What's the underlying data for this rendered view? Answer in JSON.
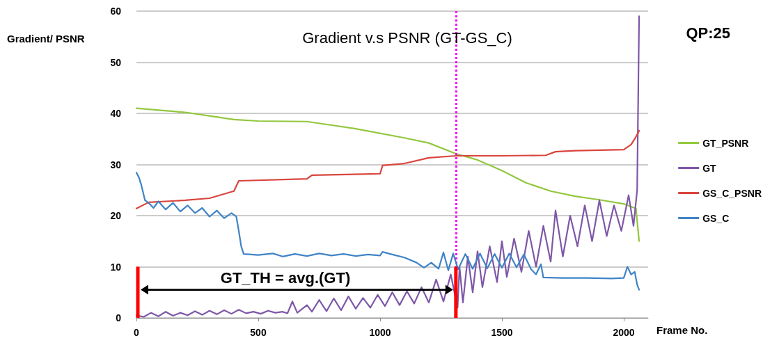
{
  "chart_data": {
    "type": "line",
    "title": "Gradient v.s PSNR (GT-GS_C)",
    "xlabel": "Frame No.",
    "ylabel": "Gradient/ PSNR",
    "annotations": [
      "QP:25",
      "GT_TH = avg.(GT)"
    ],
    "xlim": [
      0,
      2100
    ],
    "xticks": [
      0,
      500,
      1000,
      1500,
      2000
    ],
    "ylim": [
      0,
      60
    ],
    "yticks": [
      0,
      10,
      20,
      30,
      40,
      50,
      60
    ],
    "grid": "y",
    "legend": "right",
    "marker": "none",
    "line_style": "solid",
    "ref_lines": [
      {
        "axis": "x",
        "value": 1311,
        "color": "#ff00ff",
        "line_style": "dotted"
      }
    ],
    "series": [
      {
        "name": "GT_PSNR",
        "color": "#92c83e",
        "x": [
          0,
          100,
          200,
          300,
          400,
          500,
          700,
          900,
          1100,
          1200,
          1311,
          1400,
          1500,
          1600,
          1700,
          1800,
          1900,
          2000,
          2050,
          2063
        ],
        "values": [
          41,
          40.6,
          40.2,
          39.5,
          38.8,
          38.5,
          38.4,
          37.0,
          35.2,
          34.2,
          32.1,
          30.9,
          28.8,
          26.4,
          24.8,
          23.8,
          23.1,
          22.3,
          21.4,
          15
        ]
      },
      {
        "name": "GT",
        "color": "#7e57a8",
        "x": [
          0,
          30,
          60,
          90,
          120,
          150,
          180,
          210,
          240,
          270,
          300,
          330,
          360,
          390,
          420,
          450,
          480,
          510,
          540,
          570,
          600,
          620,
          640,
          660,
          700,
          720,
          750,
          780,
          810,
          840,
          870,
          900,
          930,
          960,
          990,
          1020,
          1050,
          1080,
          1110,
          1140,
          1170,
          1200,
          1230,
          1260,
          1290,
          1318,
          1326,
          1340,
          1360,
          1380,
          1400,
          1420,
          1450,
          1480,
          1500,
          1520,
          1550,
          1580,
          1610,
          1640,
          1670,
          1700,
          1720,
          1750,
          1780,
          1810,
          1840,
          1870,
          1900,
          1930,
          1960,
          1990,
          2020,
          2040,
          2055,
          2063
        ],
        "values": [
          0.5,
          0.2,
          1.0,
          0.3,
          1.2,
          0.4,
          1.0,
          0.5,
          1.3,
          0.6,
          1.4,
          0.7,
          1.5,
          0.8,
          1.6,
          0.9,
          1.2,
          0.8,
          1.4,
          1.0,
          1.2,
          0.9,
          3.2,
          1.0,
          2.5,
          1.2,
          3.5,
          1.3,
          3.8,
          1.5,
          4.2,
          1.8,
          3.9,
          2.0,
          4.5,
          2.3,
          5.0,
          2.5,
          5.2,
          2.8,
          6.0,
          3.0,
          7.5,
          3.2,
          8.5,
          2.0,
          10,
          3.0,
          12,
          5.0,
          13,
          6.0,
          14,
          7.0,
          15,
          8.0,
          15.5,
          9.0,
          17,
          10,
          18,
          11,
          21,
          12,
          20,
          14,
          22,
          15,
          23,
          16,
          22,
          17,
          24,
          18,
          25,
          59
        ]
      },
      {
        "name": "GS_C_PSNR",
        "color": "#d9453d",
        "x": [
          0,
          50,
          200,
          300,
          400,
          420,
          700,
          720,
          1000,
          1010,
          1100,
          1200,
          1311,
          1500,
          1680,
          1720,
          1800,
          2000,
          2030,
          2050,
          2063
        ],
        "values": [
          21.4,
          22.6,
          23,
          23.4,
          24.8,
          26.8,
          27.2,
          27.9,
          28.2,
          29.8,
          30.2,
          31.3,
          31.7,
          31.7,
          31.8,
          32.5,
          32.7,
          32.9,
          33.9,
          35.4,
          36.6
        ]
      },
      {
        "name": "GS_C",
        "color": "#3f84c6",
        "x": [
          0,
          10,
          20,
          35,
          50,
          70,
          90,
          120,
          150,
          180,
          210,
          240,
          270,
          300,
          330,
          360,
          390,
          410,
          420,
          430,
          440,
          500,
          560,
          600,
          650,
          700,
          750,
          800,
          850,
          900,
          950,
          1000,
          1010,
          1050,
          1100,
          1150,
          1180,
          1210,
          1240,
          1260,
          1280,
          1300,
          1320,
          1350,
          1380,
          1410,
          1440,
          1470,
          1500,
          1530,
          1560,
          1590,
          1620,
          1640,
          1660,
          1670,
          1750,
          1850,
          1950,
          2000,
          2015,
          2030,
          2045,
          2055,
          2063
        ],
        "values": [
          28.4,
          27.5,
          26,
          23,
          22.5,
          21.5,
          22.8,
          21.2,
          22.5,
          20.8,
          22,
          20.5,
          21.5,
          19.8,
          21,
          19.5,
          20.5,
          19.8,
          17,
          14,
          12.5,
          12.3,
          12.6,
          12.0,
          12.5,
          12.1,
          12.6,
          12.2,
          12.5,
          12.1,
          12.4,
          12.2,
          12.9,
          12.4,
          11.8,
          10.8,
          9.8,
          10.8,
          9.6,
          12.8,
          9.3,
          12.6,
          9.5,
          12.5,
          9.6,
          12.6,
          9.7,
          12.5,
          9.8,
          12.6,
          9.9,
          12.4,
          9.5,
          8.5,
          10.5,
          7.9,
          7.8,
          7.8,
          7.7,
          7.8,
          10,
          8.5,
          9.0,
          6.5,
          5.5
        ]
      }
    ]
  }
}
